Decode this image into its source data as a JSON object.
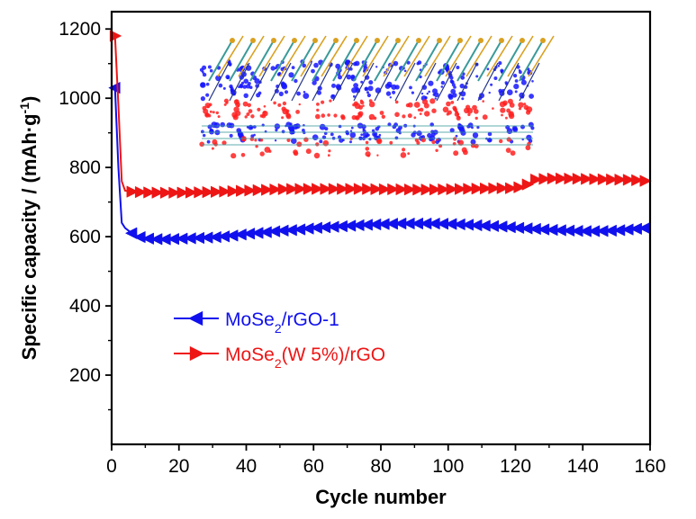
{
  "chart_data": {
    "type": "line",
    "xlabel": "Cycle number",
    "ylabel": "Specific capacity / (mAh·g⁻¹)",
    "ylabel_parts": {
      "main": "Specific capacity / (mAh·g",
      "sup": "-1",
      "tail": ")"
    },
    "xlim": [
      0,
      160
    ],
    "ylim": [
      0,
      1250
    ],
    "xticks": [
      0,
      20,
      40,
      60,
      80,
      100,
      120,
      140,
      160
    ],
    "yticks": [
      200,
      400,
      600,
      800,
      1000,
      1200
    ],
    "grid": false,
    "legend_position": "left-middle",
    "inset": {
      "description": "layered crystal structure illustration",
      "colors": [
        "#1515ff",
        "#ff2020",
        "#3a9a9a",
        "#d9a020"
      ]
    },
    "series": [
      {
        "name": "MoSe2/rGO-1",
        "legend_parts": {
          "a": "MoSe",
          "sub": "2",
          "b": "/rGO-1"
        },
        "color": "#1010ee",
        "marker": "triangle-left",
        "x": [
          1,
          2,
          3,
          4,
          6,
          8,
          10,
          15,
          20,
          25,
          30,
          35,
          40,
          45,
          50,
          55,
          60,
          65,
          70,
          75,
          80,
          85,
          90,
          95,
          100,
          105,
          110,
          115,
          120,
          125,
          130,
          135,
          140,
          145,
          150,
          155,
          160
        ],
        "y": [
          1030,
          800,
          640,
          625,
          610,
          600,
          595,
          592,
          594,
          596,
          598,
          602,
          608,
          612,
          617,
          620,
          625,
          628,
          631,
          634,
          636,
          638,
          638,
          638,
          637,
          635,
          632,
          630,
          626,
          623,
          620,
          618,
          616,
          616,
          618,
          622,
          626
        ]
      },
      {
        "name": "MoSe2(W 5%)/rGO",
        "legend_parts": {
          "a": "MoSe",
          "sub": "2",
          "b": "(W 5%)/rGO"
        },
        "color": "#ee1515",
        "marker": "triangle-right",
        "x": [
          1,
          2,
          3,
          4,
          6,
          8,
          10,
          15,
          20,
          25,
          30,
          35,
          40,
          45,
          50,
          55,
          60,
          65,
          70,
          75,
          80,
          85,
          90,
          95,
          100,
          105,
          110,
          115,
          120,
          123,
          126,
          130,
          135,
          140,
          145,
          150,
          155,
          160
        ],
        "y": [
          1180,
          980,
          760,
          733,
          730,
          729,
          728,
          727,
          727,
          728,
          729,
          731,
          733,
          735,
          737,
          738,
          738,
          738,
          738,
          738,
          737,
          737,
          736,
          736,
          737,
          738,
          739,
          740,
          740,
          748,
          765,
          768,
          768,
          767,
          766,
          765,
          764,
          760
        ]
      }
    ]
  }
}
